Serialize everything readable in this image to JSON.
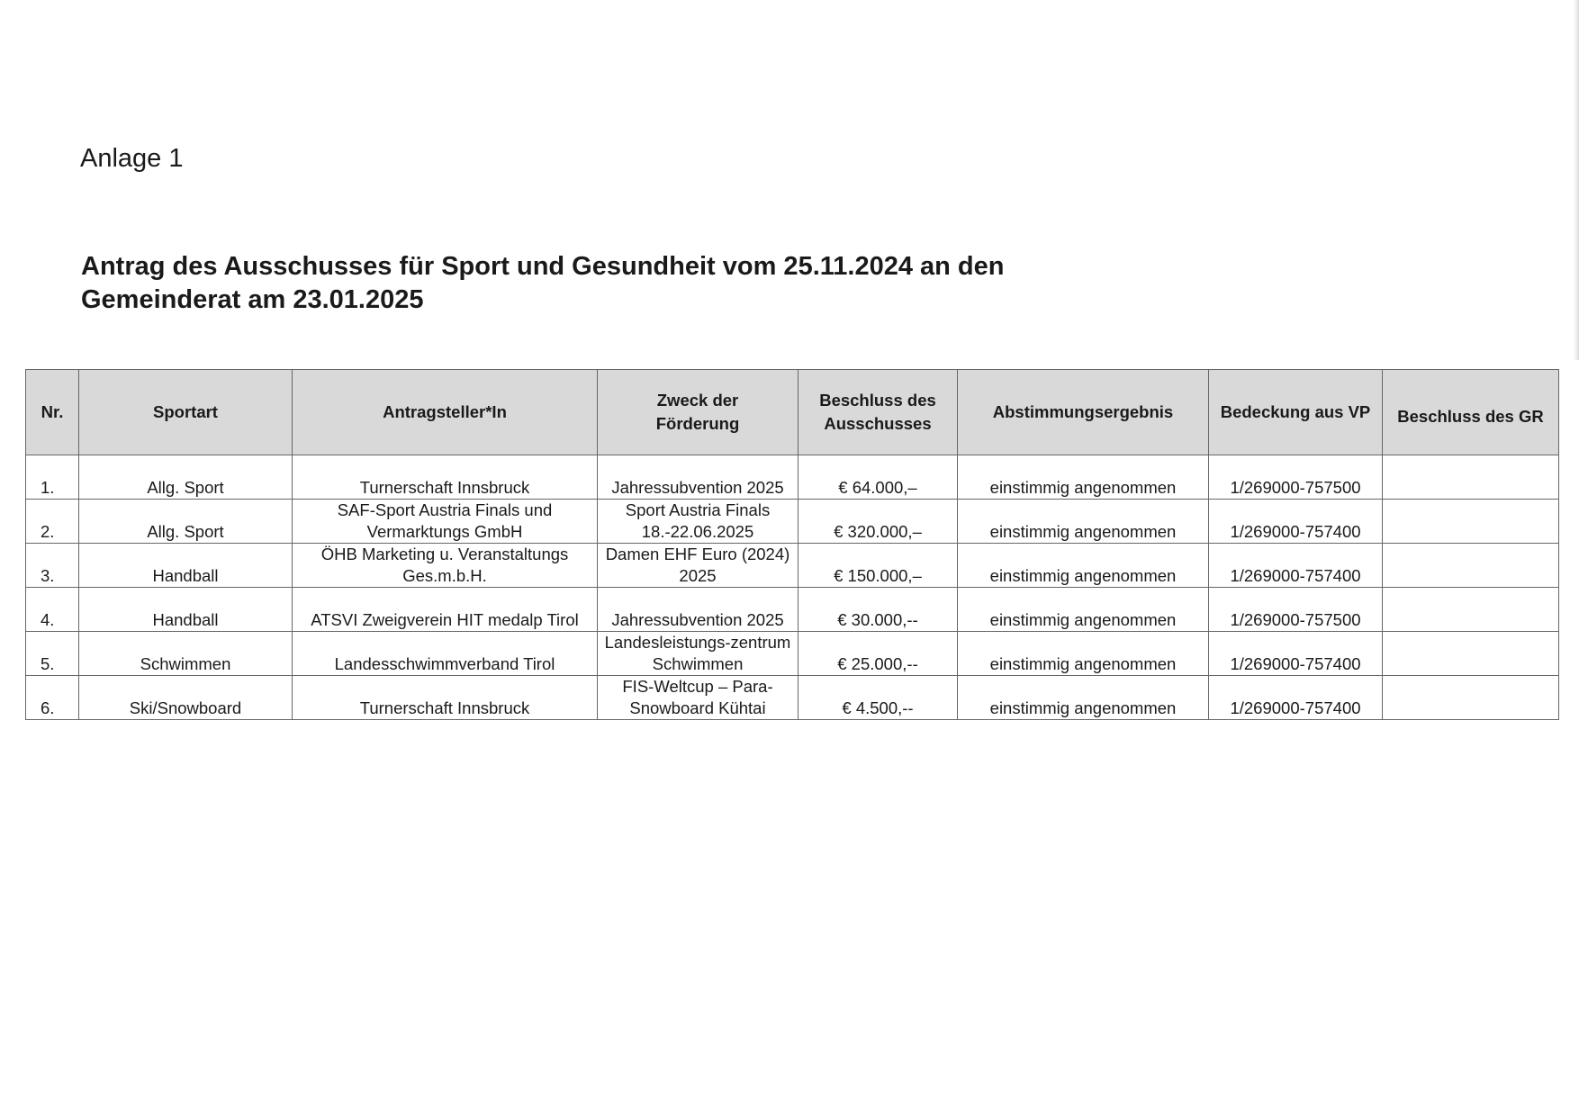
{
  "document": {
    "label": "Anlage 1",
    "heading_line1": "Antrag des Ausschusses für Sport und Gesundheit vom 25.11.2024 an den",
    "heading_line2": "Gemeinderat am 23.01.2025"
  },
  "table": {
    "headers": [
      "Nr.",
      "Sportart",
      "Antragsteller*In",
      "Zweck der Förderung",
      "Beschluss des Ausschusses",
      "Abstimmungsergebnis",
      "Bedeckung aus VP",
      "Beschluss des GR"
    ],
    "rows": [
      {
        "nr": "1.",
        "sportart": "Allg. Sport",
        "antragsteller": "Turnerschaft Innsbruck",
        "zweck": "Jahressubvention 2025",
        "beschluss": "€ 64.000,–",
        "abstimmung": "einstimmig angenommen",
        "bedeckung": "1/269000-757500",
        "gr": ""
      },
      {
        "nr": "2.",
        "sportart": "Allg. Sport",
        "antragsteller": "SAF-Sport Austria Finals und Vermarktungs GmbH",
        "zweck": "Sport Austria Finals 18.-22.06.2025",
        "beschluss": "€ 320.000,–",
        "abstimmung": "einstimmig angenommen",
        "bedeckung": "1/269000-757400",
        "gr": ""
      },
      {
        "nr": "3.",
        "sportart": "Handball",
        "antragsteller": "ÖHB Marketing u. Veranstaltungs Ges.m.b.H.",
        "zweck": "Damen EHF Euro (2024) 2025",
        "beschluss": "€ 150.000,–",
        "abstimmung": "einstimmig angenommen",
        "bedeckung": "1/269000-757400",
        "gr": ""
      },
      {
        "nr": "4.",
        "sportart": "Handball",
        "antragsteller": "ATSVI Zweigverein HIT medalp Tirol",
        "zweck": "Jahressubvention 2025",
        "beschluss": "€ 30.000,--",
        "abstimmung": "einstimmig angenommen",
        "bedeckung": "1/269000-757500",
        "gr": ""
      },
      {
        "nr": "5.",
        "sportart": "Schwimmen",
        "antragsteller": "Landesschwimmverband Tirol",
        "zweck": "Landesleistungs-zentrum Schwimmen",
        "beschluss": "€ 25.000,--",
        "abstimmung": "einstimmig angenommen",
        "bedeckung": "1/269000-757400",
        "gr": ""
      },
      {
        "nr": "6.",
        "sportart": "Ski/Snowboard",
        "antragsteller": "Turnerschaft Innsbruck",
        "zweck": "FIS-Weltcup – Para-Snowboard Kühtai",
        "beschluss": "€ 4.500,--",
        "abstimmung": "einstimmig angenommen",
        "bedeckung": "1/269000-757400",
        "gr": ""
      }
    ]
  }
}
